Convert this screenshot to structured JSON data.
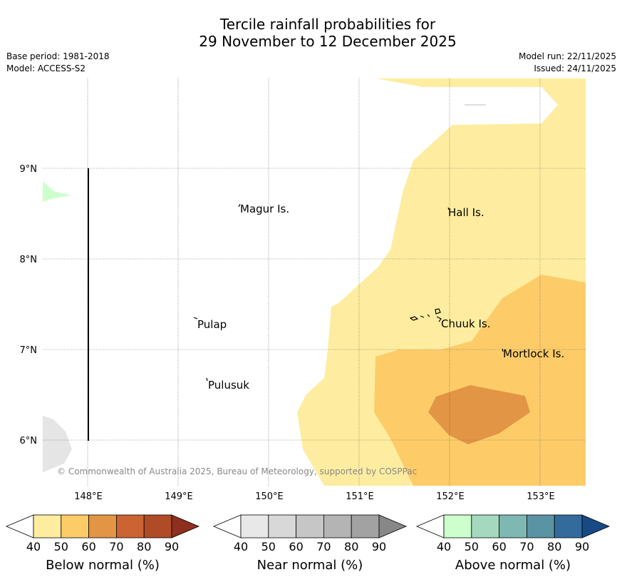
{
  "title": {
    "line1": "Tercile rainfall probabilities for",
    "line2": "29 November to 12 December 2025"
  },
  "meta": {
    "base_period": "Base period: 1981-2018",
    "model": "Model: ACCESS-S2",
    "model_run": "Model run: 22/11/2025",
    "issued": "Issued: 24/11/2025"
  },
  "map": {
    "lat_labels": [
      "9°N",
      "8°N",
      "7°N",
      "6°N"
    ],
    "lon_labels": [
      "148°E",
      "149°E",
      "150°E",
      "151°E",
      "152°E",
      "153°E"
    ],
    "places": [
      "Magur Is.",
      "Hall Is.",
      "Pulap",
      "Chuuk Is.",
      "Mortlock Is.",
      "Pulusuk"
    ],
    "copyright": "© Commonwealth of Australia 2025, Bureau of Meteorology, supported by COSPPac"
  },
  "legends": [
    {
      "title": "Below normal (%)",
      "ticks": [
        "40",
        "50",
        "60",
        "70",
        "80",
        "90"
      ],
      "colors": [
        "#ffffff",
        "#feeda0",
        "#fdcc68",
        "#e29545",
        "#cb6333",
        "#b04b27",
        "#8e2f1e"
      ]
    },
    {
      "title": "Near normal (%)",
      "ticks": [
        "40",
        "50",
        "60",
        "70",
        "80",
        "90"
      ],
      "colors": [
        "#ffffff",
        "#e8e8e8",
        "#d8d8d8",
        "#c6c6c6",
        "#b4b4b4",
        "#a2a2a2",
        "#878787"
      ]
    },
    {
      "title": "Above normal (%)",
      "ticks": [
        "40",
        "50",
        "60",
        "70",
        "80",
        "90"
      ],
      "colors": [
        "#ffffff",
        "#ccffcc",
        "#a4d9bf",
        "#7fb8b2",
        "#5a93a3",
        "#346b9d",
        "#174a85"
      ]
    }
  ]
}
